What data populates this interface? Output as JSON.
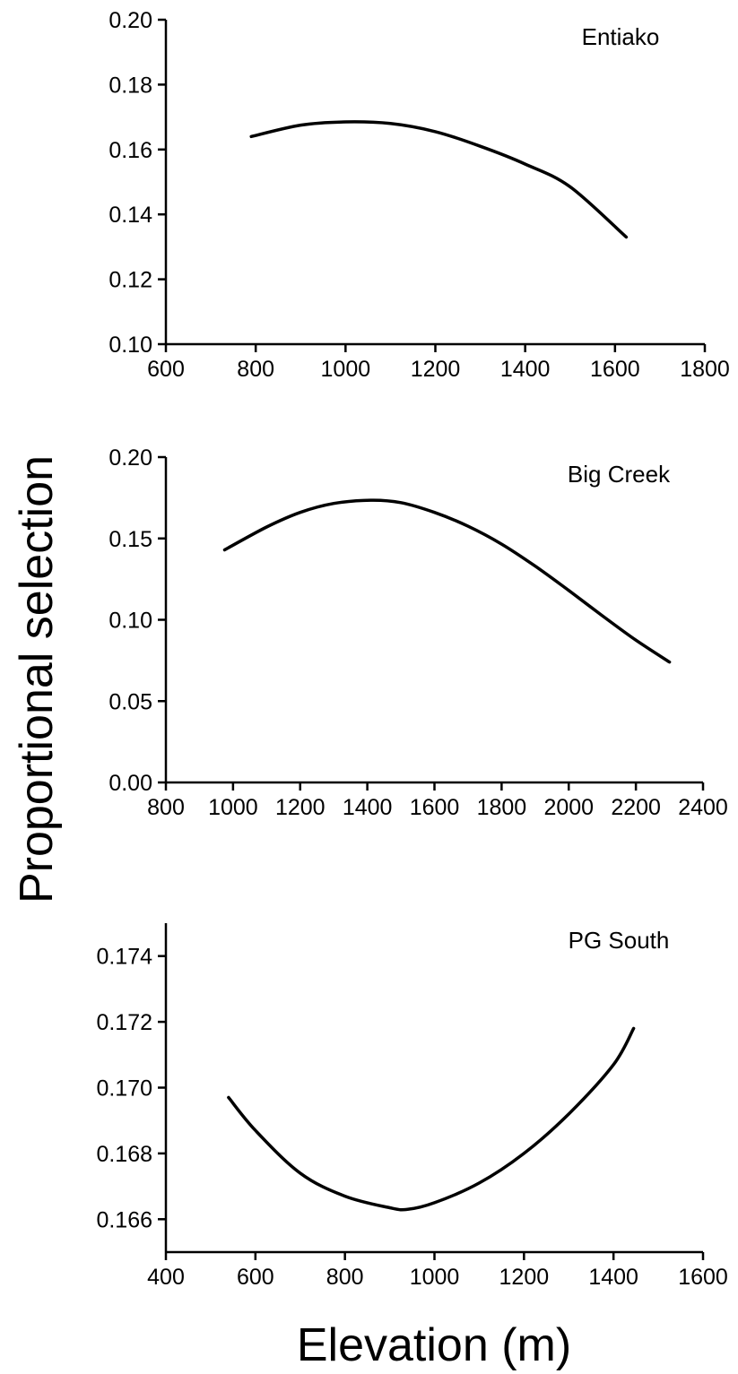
{
  "ylabel": "Proportional selection",
  "xlabel": "Elevation (m)",
  "chart_data": [
    {
      "type": "line",
      "title": "Entiako",
      "xlim": [
        600,
        1800
      ],
      "ylim": [
        0.1,
        0.2
      ],
      "xticks": [
        "600",
        "800",
        "1000",
        "1200",
        "1400",
        "1600",
        "1800"
      ],
      "yticks": [
        "0.10",
        "0.12",
        "0.14",
        "0.16",
        "0.18",
        "0.20"
      ],
      "x": [
        790,
        900,
        1000,
        1100,
        1200,
        1300,
        1400,
        1500,
        1625
      ],
      "y": [
        0.164,
        0.1675,
        0.1685,
        0.168,
        0.1655,
        0.161,
        0.1555,
        0.1485,
        0.133
      ]
    },
    {
      "type": "line",
      "title": "Big Creek",
      "xlim": [
        800,
        2400
      ],
      "ylim": [
        0.0,
        0.2
      ],
      "xticks": [
        "800",
        "1000",
        "1200",
        "1400",
        "1600",
        "1800",
        "2000",
        "2200",
        "2400"
      ],
      "yticks": [
        "0.00",
        "0.05",
        "0.10",
        "0.15",
        "0.20"
      ],
      "x": [
        975,
        1100,
        1200,
        1300,
        1410,
        1500,
        1600,
        1700,
        1800,
        1900,
        2000,
        2100,
        2200,
        2300
      ],
      "y": [
        0.143,
        0.157,
        0.166,
        0.1715,
        0.1735,
        0.172,
        0.166,
        0.1575,
        0.1465,
        0.133,
        0.118,
        0.1025,
        0.0875,
        0.074
      ]
    },
    {
      "type": "line",
      "title": "PG South",
      "xlim": [
        400,
        1600
      ],
      "ylim": [
        0.165,
        0.175
      ],
      "xticks": [
        "400",
        "600",
        "800",
        "1000",
        "1200",
        "1400",
        "1600"
      ],
      "yticks": [
        "0.166",
        "0.168",
        "0.170",
        "0.172",
        "0.174"
      ],
      "x": [
        540,
        600,
        700,
        800,
        900,
        940,
        1000,
        1100,
        1200,
        1300,
        1400,
        1445
      ],
      "y": [
        0.1697,
        0.1687,
        0.1674,
        0.1667,
        0.16635,
        0.1663,
        0.1665,
        0.1671,
        0.168,
        0.1692,
        0.1707,
        0.1718
      ]
    }
  ]
}
